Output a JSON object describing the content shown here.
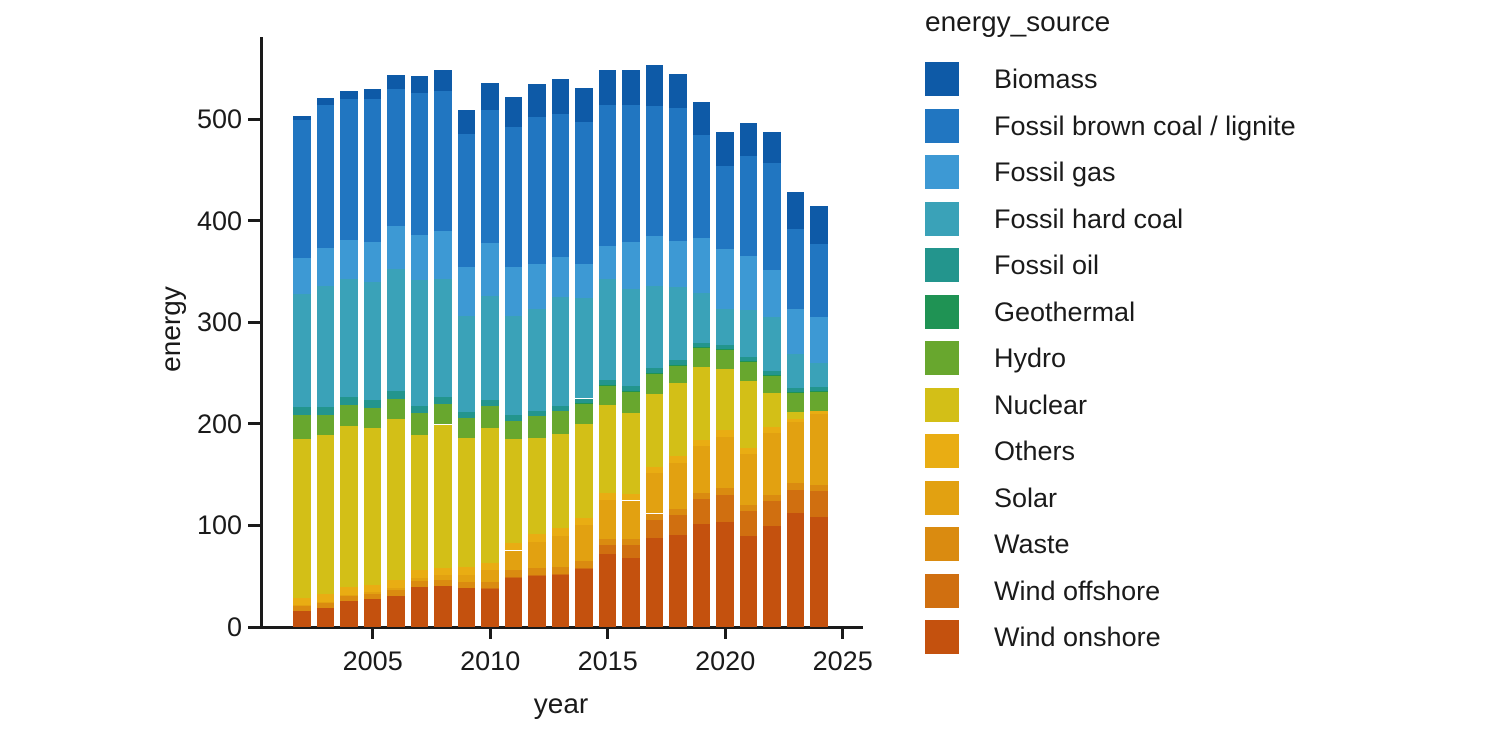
{
  "figure": {
    "xlabel": "year",
    "ylabel": "energy",
    "legend_title": "energy_source",
    "text_color": "#1a1a1a",
    "background_color": "#ffffff"
  },
  "chart_data": {
    "type": "bar",
    "stacked": true,
    "title": "",
    "xlabel": "year",
    "ylabel": "energy",
    "legend_title": "energy_source",
    "legend_position": "right",
    "grid": false,
    "ylim": [
      0,
      580
    ],
    "xlim": [
      2001,
      2025.5
    ],
    "y_ticks": [
      0,
      100,
      200,
      300,
      400,
      500
    ],
    "x_ticks": [
      2005,
      2010,
      2015,
      2020,
      2025
    ],
    "x": [
      2002,
      2003,
      2004,
      2005,
      2006,
      2007,
      2008,
      2009,
      2010,
      2011,
      2012,
      2013,
      2014,
      2015,
      2016,
      2017,
      2018,
      2019,
      2020,
      2021,
      2022,
      2023,
      2024
    ],
    "stack_order_bottom_to_top": [
      "Wind onshore",
      "Wind offshore",
      "Waste",
      "Solar",
      "Others",
      "Nuclear",
      "Hydro",
      "Geothermal",
      "Fossil oil",
      "Fossil hard coal",
      "Fossil gas",
      "Fossil brown coal / lignite",
      "Biomass"
    ],
    "series": [
      {
        "name": "Biomass",
        "color": "#0e5aa7",
        "values": [
          4.1,
          6.0,
          7.5,
          10.6,
          13.6,
          17.3,
          20.5,
          23.5,
          26.5,
          29.5,
          33.0,
          33.5,
          34.0,
          34.5,
          35.0,
          40.0,
          33.0,
          32.5,
          33.0,
          32.5,
          30.5,
          36.5,
          37.2
        ]
      },
      {
        "name": "Fossil brown coal / lignite",
        "color": "#2176c1",
        "values": [
          135.9,
          141.3,
          138.7,
          140.0,
          135.0,
          139.0,
          137.5,
          131.0,
          131.0,
          138.0,
          145.0,
          141.0,
          140.0,
          139.0,
          135.0,
          128.5,
          131.5,
          102.0,
          82.0,
          99.0,
          105.5,
          78.5,
          72.0
        ]
      },
      {
        "name": "Fossil gas",
        "color": "#3d99d4",
        "values": [
          35.5,
          37.0,
          38.0,
          40.0,
          42.5,
          45.0,
          48.0,
          48.0,
          52.0,
          48.0,
          44.0,
          40.0,
          33.0,
          32.0,
          46.5,
          49.0,
          44.5,
          54.0,
          59.0,
          52.5,
          46.5,
          44.5,
          44.5
        ]
      },
      {
        "name": "Fossil hard coal",
        "color": "#3aa2b8",
        "values": [
          111.0,
          119.0,
          117.0,
          116.0,
          120.0,
          124.0,
          116.0,
          95.0,
          103.0,
          98.0,
          100.0,
          107.0,
          99.0,
          100.0,
          95.0,
          81.0,
          72.5,
          48.7,
          35.6,
          46.4,
          52.8,
          33.0,
          24.2
        ]
      },
      {
        "name": "Fossil oil",
        "color": "#23958d",
        "values": [
          7.5,
          7.8,
          7.5,
          7.6,
          7.3,
          6.8,
          6.5,
          6.0,
          5.8,
          5.5,
          5.2,
          5.0,
          4.8,
          4.6,
          4.5,
          4.4,
          4.3,
          4.2,
          4.2,
          4.3,
          4.4,
          4.3,
          4.2
        ]
      },
      {
        "name": "Geothermal",
        "color": "#1f9354",
        "values": [
          0,
          0,
          0,
          0,
          0,
          0,
          0,
          0,
          0,
          0,
          0,
          0,
          0.1,
          0.1,
          0.2,
          0.2,
          0.2,
          0.2,
          0.2,
          0.2,
          0.2,
          0.2,
          0.2
        ]
      },
      {
        "name": "Hydro",
        "color": "#68a72e",
        "values": [
          23.7,
          20.1,
          21.0,
          19.6,
          20.0,
          21.2,
          20.4,
          19.0,
          21.0,
          17.7,
          21.8,
          22.8,
          20.5,
          19.5,
          21.5,
          20.2,
          18.0,
          20.0,
          18.7,
          19.5,
          17.5,
          19.3,
          19.5
        ]
      },
      {
        "name": "Nuclear",
        "color": "#d3bf17",
        "values": [
          156.3,
          156.9,
          158.4,
          154.6,
          158.7,
          133.2,
          140.9,
          127.7,
          133.0,
          102.3,
          94.2,
          92.1,
          91.8,
          86.8,
          80.0,
          72.2,
          71.9,
          71.1,
          60.9,
          65.4,
          32.8,
          6.7,
          0
        ]
      },
      {
        "name": "Others",
        "color": "#e9ad13",
        "values": [
          7.5,
          7.5,
          7.5,
          7.5,
          7.5,
          7.5,
          7.5,
          7.5,
          7.5,
          7.5,
          7.5,
          7.5,
          7.0,
          6.5,
          6.5,
          6.5,
          6.5,
          6.5,
          6.5,
          6.5,
          6.5,
          3.0,
          3.0
        ]
      },
      {
        "name": "Solar",
        "color": "#e2a111",
        "values": [
          0.2,
          0.3,
          0.6,
          1.3,
          2.2,
          3.1,
          4.4,
          6.6,
          11.7,
          19.6,
          26.4,
          31.0,
          36.1,
          38.7,
          38.1,
          39.4,
          45.8,
          46.4,
          50.6,
          50.0,
          60.8,
          60.5,
          69.5
        ]
      },
      {
        "name": "Waste",
        "color": "#da8b10",
        "values": [
          5.3,
          5.4,
          5.5,
          5.6,
          5.7,
          5.8,
          5.9,
          6.0,
          6.1,
          6.2,
          6.3,
          6.4,
          6.2,
          6.0,
          6.0,
          6.0,
          6.0,
          6.0,
          6.0,
          6.0,
          6.0,
          6.0,
          6.0
        ]
      },
      {
        "name": "Wind offshore",
        "color": "#d06f10",
        "values": [
          0,
          0,
          0,
          0,
          0,
          0,
          0,
          0,
          0.2,
          0.6,
          0.7,
          0.9,
          1.4,
          8.3,
          12.4,
          17.7,
          19.3,
          24.4,
          27.3,
          24.4,
          24.8,
          23.5,
          25.7
        ]
      },
      {
        "name": "Wind onshore",
        "color": "#c4510e",
        "values": [
          15.9,
          18.9,
          25.5,
          27.2,
          30.7,
          39.7,
          40.6,
          38.6,
          37.8,
          48.9,
          50.7,
          51.7,
          57.0,
          72.3,
          68.0,
          88.0,
          90.5,
          101.1,
          103.1,
          89.5,
          99.0,
          111.8,
          108.0
        ]
      }
    ]
  }
}
